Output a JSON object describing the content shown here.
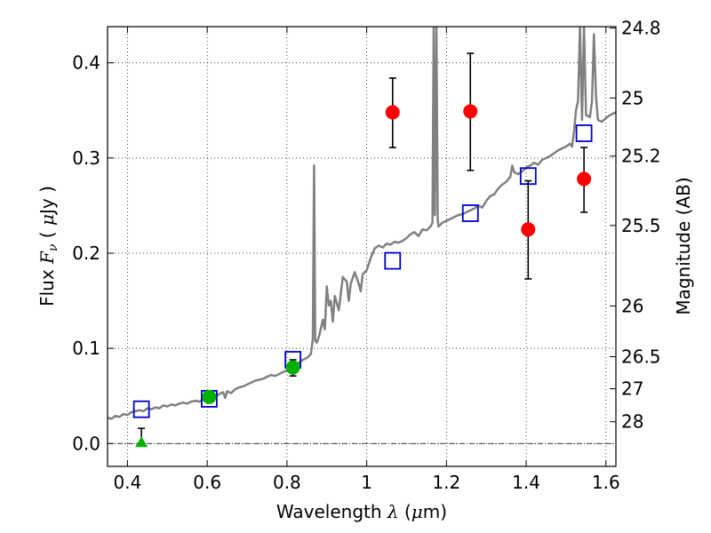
{
  "chart_data": {
    "type": "scatter",
    "xlabel": {
      "text": "Wavelength",
      "symbol": "λ",
      "unit": "(",
      "unit_sym": "μ",
      "unit_end": "m)"
    },
    "ylabel": {
      "text": "Flux",
      "symbol": "F",
      "sub": "ν",
      "unit": "( ",
      "unit_sym": "μ",
      "unit_end": "Jy )"
    },
    "ylabel_right": "Magnitude (AB)",
    "xlim": [
      0.35,
      1.625
    ],
    "ylim": [
      -0.024,
      0.438
    ],
    "grid": true,
    "x_ticks": [
      {
        "v": 0.4,
        "label": "0.4"
      },
      {
        "v": 0.6,
        "label": "0.6"
      },
      {
        "v": 0.8,
        "label": "0.8"
      },
      {
        "v": 1.0,
        "label": "1"
      },
      {
        "v": 1.2,
        "label": "1.2"
      },
      {
        "v": 1.4,
        "label": "1.4"
      },
      {
        "v": 1.6,
        "label": "1.6"
      }
    ],
    "y_ticks": [
      {
        "v": 0.0,
        "label": "0.0"
      },
      {
        "v": 0.1,
        "label": "0.1"
      },
      {
        "v": 0.2,
        "label": "0.2"
      },
      {
        "v": 0.3,
        "label": "0.3"
      },
      {
        "v": 0.4,
        "label": "0.4"
      }
    ],
    "right_ticks": [
      {
        "mag": 24.8,
        "label": "24.8"
      },
      {
        "mag": 25,
        "label": "25"
      },
      {
        "mag": 25.2,
        "label": "25.2"
      },
      {
        "mag": 25.5,
        "label": "25.5"
      },
      {
        "mag": 26,
        "label": "26"
      },
      {
        "mag": 26.5,
        "label": "26.5"
      },
      {
        "mag": 27,
        "label": "27"
      },
      {
        "mag": 28,
        "label": "28"
      }
    ],
    "zero_line": 0.0,
    "colors": {
      "model": "#808080",
      "red": "#ff0000",
      "green": "#00b000",
      "blue": "#0000cc",
      "err": "#000000"
    },
    "model_spectrum": [
      [
        0.35,
        0.027
      ],
      [
        0.36,
        0.026
      ],
      [
        0.37,
        0.029
      ],
      [
        0.38,
        0.028
      ],
      [
        0.39,
        0.031
      ],
      [
        0.4,
        0.03
      ],
      [
        0.41,
        0.033
      ],
      [
        0.42,
        0.034
      ],
      [
        0.43,
        0.035
      ],
      [
        0.44,
        0.034
      ],
      [
        0.45,
        0.037
      ],
      [
        0.46,
        0.036
      ],
      [
        0.47,
        0.038
      ],
      [
        0.48,
        0.037
      ],
      [
        0.49,
        0.04
      ],
      [
        0.5,
        0.039
      ],
      [
        0.51,
        0.041
      ],
      [
        0.52,
        0.04
      ],
      [
        0.53,
        0.042
      ],
      [
        0.54,
        0.043
      ],
      [
        0.55,
        0.042
      ],
      [
        0.56,
        0.044
      ],
      [
        0.57,
        0.045
      ],
      [
        0.58,
        0.044
      ],
      [
        0.59,
        0.046
      ],
      [
        0.6,
        0.048
      ],
      [
        0.61,
        0.047
      ],
      [
        0.62,
        0.049
      ],
      [
        0.63,
        0.052
      ],
      [
        0.64,
        0.054
      ],
      [
        0.645,
        0.048
      ],
      [
        0.65,
        0.055
      ],
      [
        0.66,
        0.053
      ],
      [
        0.67,
        0.057
      ],
      [
        0.68,
        0.059
      ],
      [
        0.69,
        0.06
      ],
      [
        0.7,
        0.062
      ],
      [
        0.71,
        0.064
      ],
      [
        0.72,
        0.066
      ],
      [
        0.73,
        0.067
      ],
      [
        0.74,
        0.068
      ],
      [
        0.75,
        0.07
      ],
      [
        0.76,
        0.072
      ],
      [
        0.77,
        0.071
      ],
      [
        0.78,
        0.073
      ],
      [
        0.79,
        0.075
      ],
      [
        0.8,
        0.077
      ],
      [
        0.81,
        0.08
      ],
      [
        0.82,
        0.083
      ],
      [
        0.83,
        0.085
      ],
      [
        0.84,
        0.088
      ],
      [
        0.85,
        0.09
      ],
      [
        0.86,
        0.094
      ],
      [
        0.865,
        0.11
      ],
      [
        0.868,
        0.292
      ],
      [
        0.871,
        0.108
      ],
      [
        0.875,
        0.106
      ],
      [
        0.88,
        0.112
      ],
      [
        0.89,
        0.13
      ],
      [
        0.895,
        0.12
      ],
      [
        0.9,
        0.165
      ],
      [
        0.905,
        0.145
      ],
      [
        0.91,
        0.15
      ],
      [
        0.915,
        0.128
      ],
      [
        0.92,
        0.155
      ],
      [
        0.93,
        0.14
      ],
      [
        0.94,
        0.175
      ],
      [
        0.95,
        0.17
      ],
      [
        0.955,
        0.15
      ],
      [
        0.96,
        0.168
      ],
      [
        0.97,
        0.18
      ],
      [
        0.98,
        0.168
      ],
      [
        0.985,
        0.16
      ],
      [
        0.99,
        0.178
      ],
      [
        1.0,
        0.182
      ],
      [
        1.01,
        0.195
      ],
      [
        1.02,
        0.205
      ],
      [
        1.03,
        0.208
      ],
      [
        1.04,
        0.206
      ],
      [
        1.05,
        0.21
      ],
      [
        1.06,
        0.209
      ],
      [
        1.07,
        0.212
      ],
      [
        1.08,
        0.211
      ],
      [
        1.09,
        0.213
      ],
      [
        1.1,
        0.216
      ],
      [
        1.11,
        0.22
      ],
      [
        1.12,
        0.222
      ],
      [
        1.13,
        0.218
      ],
      [
        1.14,
        0.225
      ],
      [
        1.15,
        0.224
      ],
      [
        1.16,
        0.228
      ],
      [
        1.165,
        0.232
      ],
      [
        1.168,
        0.438
      ],
      [
        1.171,
        0.24
      ],
      [
        1.175,
        0.438
      ],
      [
        1.178,
        0.235
      ],
      [
        1.18,
        0.228
      ],
      [
        1.19,
        0.232
      ],
      [
        1.2,
        0.234
      ],
      [
        1.21,
        0.236
      ],
      [
        1.22,
        0.238
      ],
      [
        1.23,
        0.24
      ],
      [
        1.24,
        0.241
      ],
      [
        1.25,
        0.243
      ],
      [
        1.26,
        0.245
      ],
      [
        1.27,
        0.247
      ],
      [
        1.28,
        0.25
      ],
      [
        1.29,
        0.248
      ],
      [
        1.3,
        0.255
      ],
      [
        1.31,
        0.26
      ],
      [
        1.32,
        0.262
      ],
      [
        1.33,
        0.268
      ],
      [
        1.34,
        0.272
      ],
      [
        1.35,
        0.275
      ],
      [
        1.36,
        0.28
      ],
      [
        1.365,
        0.292
      ],
      [
        1.37,
        0.285
      ],
      [
        1.38,
        0.283
      ],
      [
        1.39,
        0.286
      ],
      [
        1.4,
        0.29
      ],
      [
        1.41,
        0.292
      ],
      [
        1.42,
        0.295
      ],
      [
        1.43,
        0.293
      ],
      [
        1.44,
        0.298
      ],
      [
        1.45,
        0.3
      ],
      [
        1.46,
        0.302
      ],
      [
        1.47,
        0.305
      ],
      [
        1.48,
        0.308
      ],
      [
        1.49,
        0.31
      ],
      [
        1.5,
        0.312
      ],
      [
        1.51,
        0.315
      ],
      [
        1.515,
        0.312
      ],
      [
        1.52,
        0.328
      ],
      [
        1.525,
        0.35
      ],
      [
        1.53,
        0.36
      ],
      [
        1.535,
        0.438
      ],
      [
        1.54,
        0.34
      ],
      [
        1.545,
        0.438
      ],
      [
        1.55,
        0.345
      ],
      [
        1.56,
        0.343
      ],
      [
        1.565,
        0.36
      ],
      [
        1.57,
        0.43
      ],
      [
        1.575,
        0.365
      ],
      [
        1.58,
        0.34
      ],
      [
        1.59,
        0.338
      ],
      [
        1.6,
        0.342
      ],
      [
        1.61,
        0.345
      ],
      [
        1.625,
        0.348
      ]
    ],
    "red_points": [
      {
        "x": 1.065,
        "y": 0.348,
        "err_lo": 0.311,
        "err_hi": 0.384
      },
      {
        "x": 1.26,
        "y": 0.349,
        "err_lo": 0.287,
        "err_hi": 0.41
      },
      {
        "x": 1.405,
        "y": 0.225,
        "err_lo": 0.173,
        "err_hi": 0.276
      },
      {
        "x": 1.545,
        "y": 0.278,
        "err_lo": 0.243,
        "err_hi": 0.311
      }
    ],
    "green_points": [
      {
        "x": 0.605,
        "y": 0.049,
        "err_lo": 0.044,
        "err_hi": 0.054
      },
      {
        "x": 0.815,
        "y": 0.08,
        "err_lo": 0.071,
        "err_hi": 0.088
      }
    ],
    "green_triangles": [
      {
        "x": 0.435,
        "y": 0.0,
        "err_lo": 0.0,
        "err_hi": 0.016
      }
    ],
    "blue_squares": [
      {
        "x": 0.435,
        "y": 0.036
      },
      {
        "x": 0.605,
        "y": 0.047
      },
      {
        "x": 0.815,
        "y": 0.088
      },
      {
        "x": 1.065,
        "y": 0.192
      },
      {
        "x": 1.26,
        "y": 0.242
      },
      {
        "x": 1.405,
        "y": 0.281
      },
      {
        "x": 1.545,
        "y": 0.326
      }
    ]
  }
}
